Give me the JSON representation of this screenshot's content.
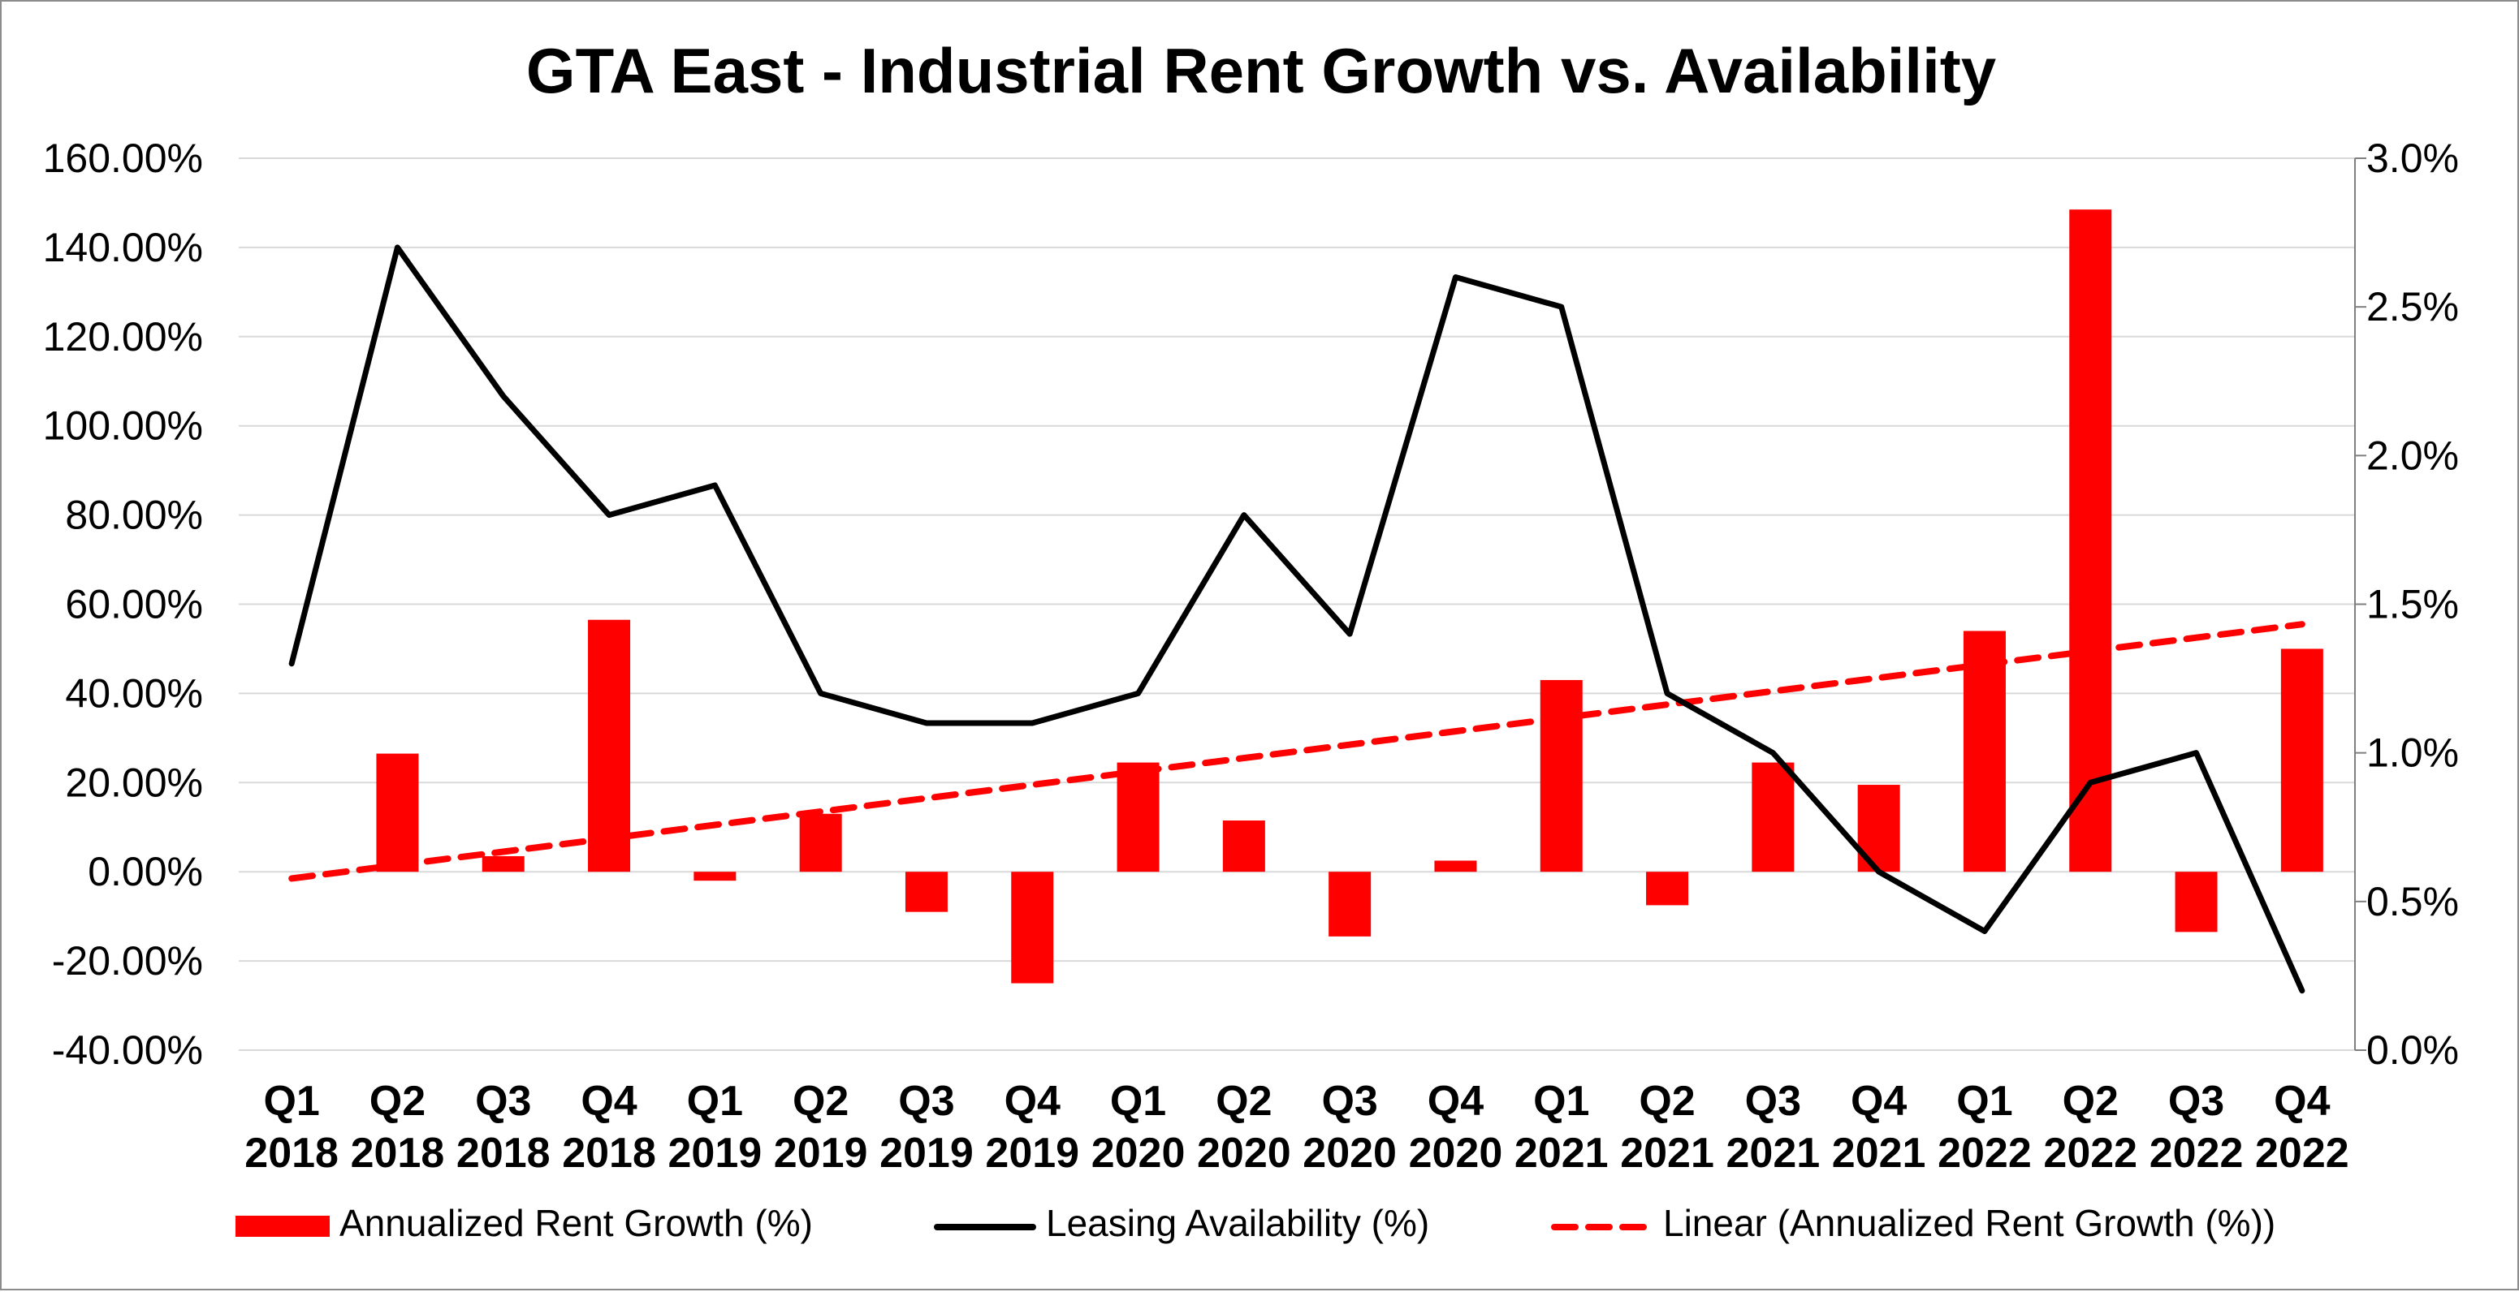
{
  "chart_data": {
    "type": "bar",
    "title": "GTA East - Industrial Rent Growth vs. Availability",
    "categories": [
      [
        "Q1",
        "2018"
      ],
      [
        "Q2",
        "2018"
      ],
      [
        "Q3",
        "2018"
      ],
      [
        "Q4",
        "2018"
      ],
      [
        "Q1",
        "2019"
      ],
      [
        "Q2",
        "2019"
      ],
      [
        "Q3",
        "2019"
      ],
      [
        "Q4",
        "2019"
      ],
      [
        "Q1",
        "2020"
      ],
      [
        "Q2",
        "2020"
      ],
      [
        "Q3",
        "2020"
      ],
      [
        "Q4",
        "2020"
      ],
      [
        "Q1",
        "2021"
      ],
      [
        "Q2",
        "2021"
      ],
      [
        "Q3",
        "2021"
      ],
      [
        "Q4",
        "2021"
      ],
      [
        "Q1",
        "2022"
      ],
      [
        "Q2",
        "2022"
      ],
      [
        "Q3",
        "2022"
      ],
      [
        "Q4",
        "2022"
      ]
    ],
    "series": [
      {
        "name": "Annualized Rent Growth (%)",
        "type": "bar",
        "axis": "left",
        "color": "#ff0000",
        "values": [
          0,
          26.5,
          3.5,
          56.5,
          -2,
          13,
          -9,
          -25,
          24.5,
          11.5,
          -14.5,
          2.5,
          43,
          -7.5,
          24.5,
          19.5,
          54,
          148.5,
          -13.5,
          50
        ]
      },
      {
        "name": "Leasing Availability (%)",
        "type": "line",
        "axis": "right",
        "color": "#000000",
        "values": [
          1.3,
          2.7,
          2.2,
          1.8,
          1.9,
          1.2,
          1.1,
          1.1,
          1.2,
          1.8,
          1.4,
          2.6,
          2.5,
          1.2,
          1.0,
          0.6,
          0.4,
          0.9,
          1.0,
          0.2
        ]
      },
      {
        "name": "Linear (Annualized Rent Growth (%))",
        "type": "trendline",
        "axis": "left",
        "color": "#ff0000",
        "dash": true,
        "values": [
          -1.5,
          1.5,
          4.5,
          7.5,
          10.5,
          13.5,
          16.5,
          19.5,
          22.5,
          25.5,
          28.5,
          31.5,
          34.5,
          37.5,
          40.5,
          43.5,
          46.5,
          49.5,
          52.5,
          55.5
        ]
      }
    ],
    "y_left": {
      "ylim": [
        -40,
        160
      ],
      "ticks": [
        160,
        140,
        120,
        100,
        80,
        60,
        40,
        20,
        0,
        -20,
        -40
      ],
      "tick_labels": [
        "160.00%",
        "140.00%",
        "120.00%",
        "100.00%",
        "80.00%",
        "60.00%",
        "40.00%",
        "20.00%",
        "0.00%",
        "-20.00%",
        "-40.00%"
      ]
    },
    "y_right": {
      "ylim": [
        0,
        3
      ],
      "ticks": [
        3.0,
        2.5,
        2.0,
        1.5,
        1.0,
        0.5,
        0.0
      ],
      "tick_labels": [
        "3.0%",
        "2.5%",
        "2.0%",
        "1.5%",
        "1.0%",
        "0.5%",
        "0.0%"
      ]
    },
    "grid": true,
    "legend_position": "bottom"
  }
}
